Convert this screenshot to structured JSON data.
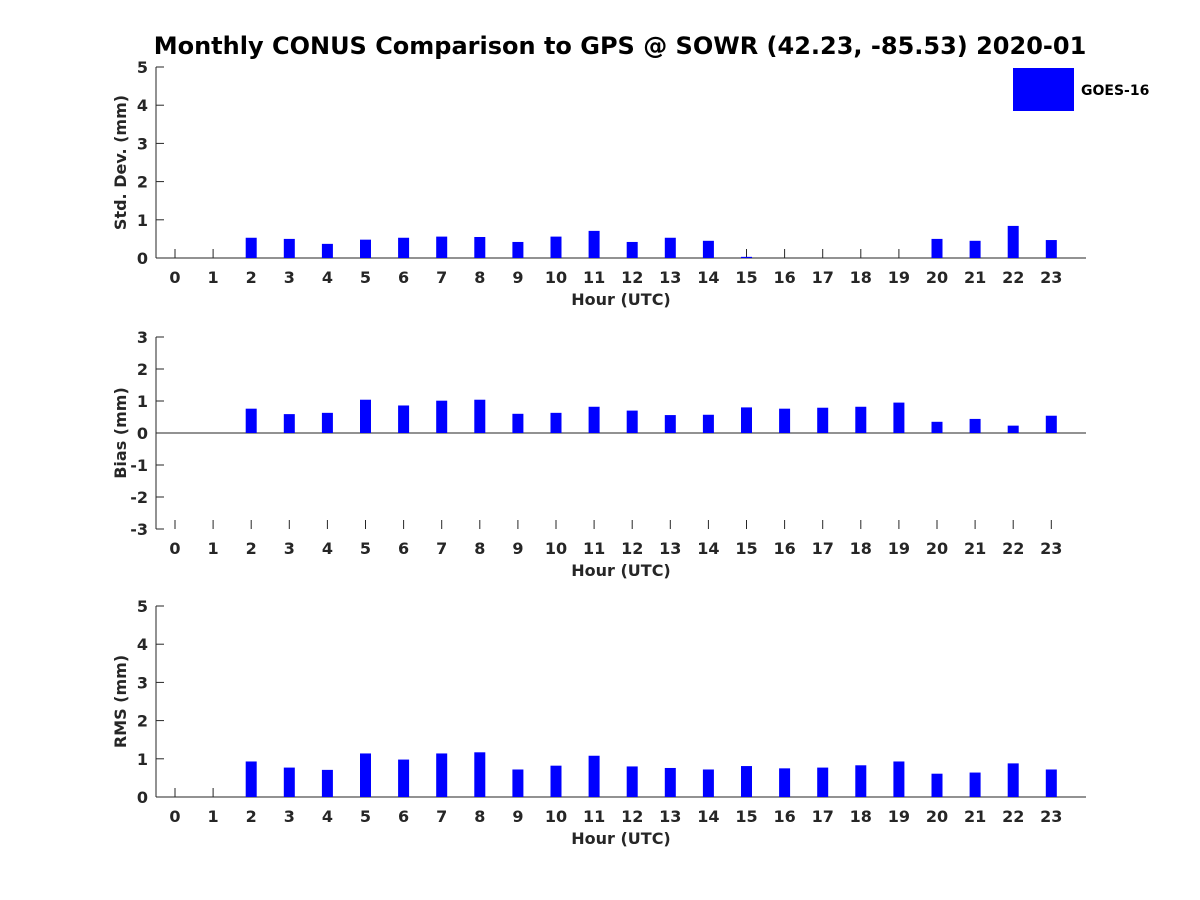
{
  "colors": {
    "bar": "#0000ff",
    "axis": "#262626",
    "background": "#ffffff"
  },
  "title": "Monthly CONUS Comparison to GPS @ SOWR (42.23, -85.53) 2020-01",
  "legend": {
    "label": "GOES-16"
  },
  "chart_data": [
    {
      "type": "bar",
      "name": "std-dev",
      "ylabel": "Std. Dev. (mm)",
      "xlabel": "Hour (UTC)",
      "ylim": [
        0,
        5
      ],
      "yticks": [
        "0",
        "1",
        "2",
        "3",
        "4",
        "5"
      ],
      "categories": [
        "0",
        "1",
        "2",
        "3",
        "4",
        "5",
        "6",
        "7",
        "8",
        "9",
        "10",
        "11",
        "12",
        "13",
        "14",
        "15",
        "16",
        "17",
        "18",
        "19",
        "20",
        "21",
        "22",
        "23"
      ],
      "series": [
        {
          "name": "GOES-16",
          "values": [
            null,
            null,
            0.53,
            0.5,
            0.37,
            0.48,
            0.53,
            0.56,
            0.55,
            0.42,
            0.56,
            0.71,
            0.42,
            0.53,
            0.45,
            0.03,
            null,
            null,
            null,
            null,
            0.5,
            0.45,
            0.84,
            0.47
          ]
        }
      ]
    },
    {
      "type": "bar",
      "name": "bias",
      "ylabel": "Bias (mm)",
      "xlabel": "Hour (UTC)",
      "ylim": [
        -3,
        3
      ],
      "yticks": [
        "-3",
        "-2",
        "-1",
        "0",
        "1",
        "2",
        "3"
      ],
      "categories": [
        "0",
        "1",
        "2",
        "3",
        "4",
        "5",
        "6",
        "7",
        "8",
        "9",
        "10",
        "11",
        "12",
        "13",
        "14",
        "15",
        "16",
        "17",
        "18",
        "19",
        "20",
        "21",
        "22",
        "23"
      ],
      "series": [
        {
          "name": "GOES-16",
          "values": [
            null,
            null,
            0.76,
            0.59,
            0.63,
            1.04,
            0.86,
            1.01,
            1.04,
            0.6,
            0.63,
            0.82,
            0.7,
            0.56,
            0.57,
            0.8,
            0.76,
            0.79,
            0.82,
            0.95,
            0.35,
            0.44,
            0.23,
            0.54
          ]
        }
      ]
    },
    {
      "type": "bar",
      "name": "rms",
      "ylabel": "RMS (mm)",
      "xlabel": "Hour (UTC)",
      "ylim": [
        0,
        5
      ],
      "yticks": [
        "0",
        "1",
        "2",
        "3",
        "4",
        "5"
      ],
      "categories": [
        "0",
        "1",
        "2",
        "3",
        "4",
        "5",
        "6",
        "7",
        "8",
        "9",
        "10",
        "11",
        "12",
        "13",
        "14",
        "15",
        "16",
        "17",
        "18",
        "19",
        "20",
        "21",
        "22",
        "23"
      ],
      "series": [
        {
          "name": "GOES-16",
          "values": [
            null,
            null,
            0.93,
            0.77,
            0.71,
            1.14,
            0.98,
            1.14,
            1.17,
            0.72,
            0.82,
            1.08,
            0.8,
            0.76,
            0.72,
            0.81,
            0.75,
            0.77,
            0.83,
            0.93,
            0.61,
            0.64,
            0.88,
            0.72
          ]
        }
      ]
    }
  ]
}
